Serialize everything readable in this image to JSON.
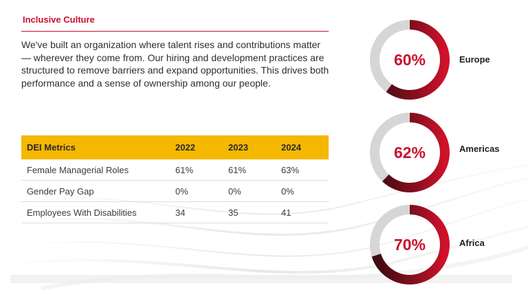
{
  "section": {
    "title": "Inclusive Culture",
    "intro": "We've built an organization where talent rises and contributions matter — wherever they come from. Our hiring and development practices are structured to remove barriers and expand opportunities. This drives both performance and a sense of ownership among our people."
  },
  "table": {
    "headers": [
      "DEI Metrics",
      "2022",
      "2023",
      "2024"
    ],
    "rows": [
      [
        "Female Managerial Roles",
        "61%",
        "61%",
        "63%"
      ],
      [
        "Gender Pay Gap",
        "0%",
        "0%",
        "0%"
      ],
      [
        "Employees With Disabilities",
        "34",
        "35",
        "41"
      ]
    ]
  },
  "regions": [
    {
      "name": "Europe",
      "percent_label": "60%",
      "value": 60
    },
    {
      "name": "Americas",
      "percent_label": "62%",
      "value": 62
    },
    {
      "name": "Africa",
      "percent_label": "70%",
      "value": 70
    }
  ],
  "colors": {
    "accent_red": "#c8102e",
    "dark_maroon": "#3a0a12",
    "header_yellow": "#f5b800",
    "track_gray": "#d6d6d6"
  }
}
